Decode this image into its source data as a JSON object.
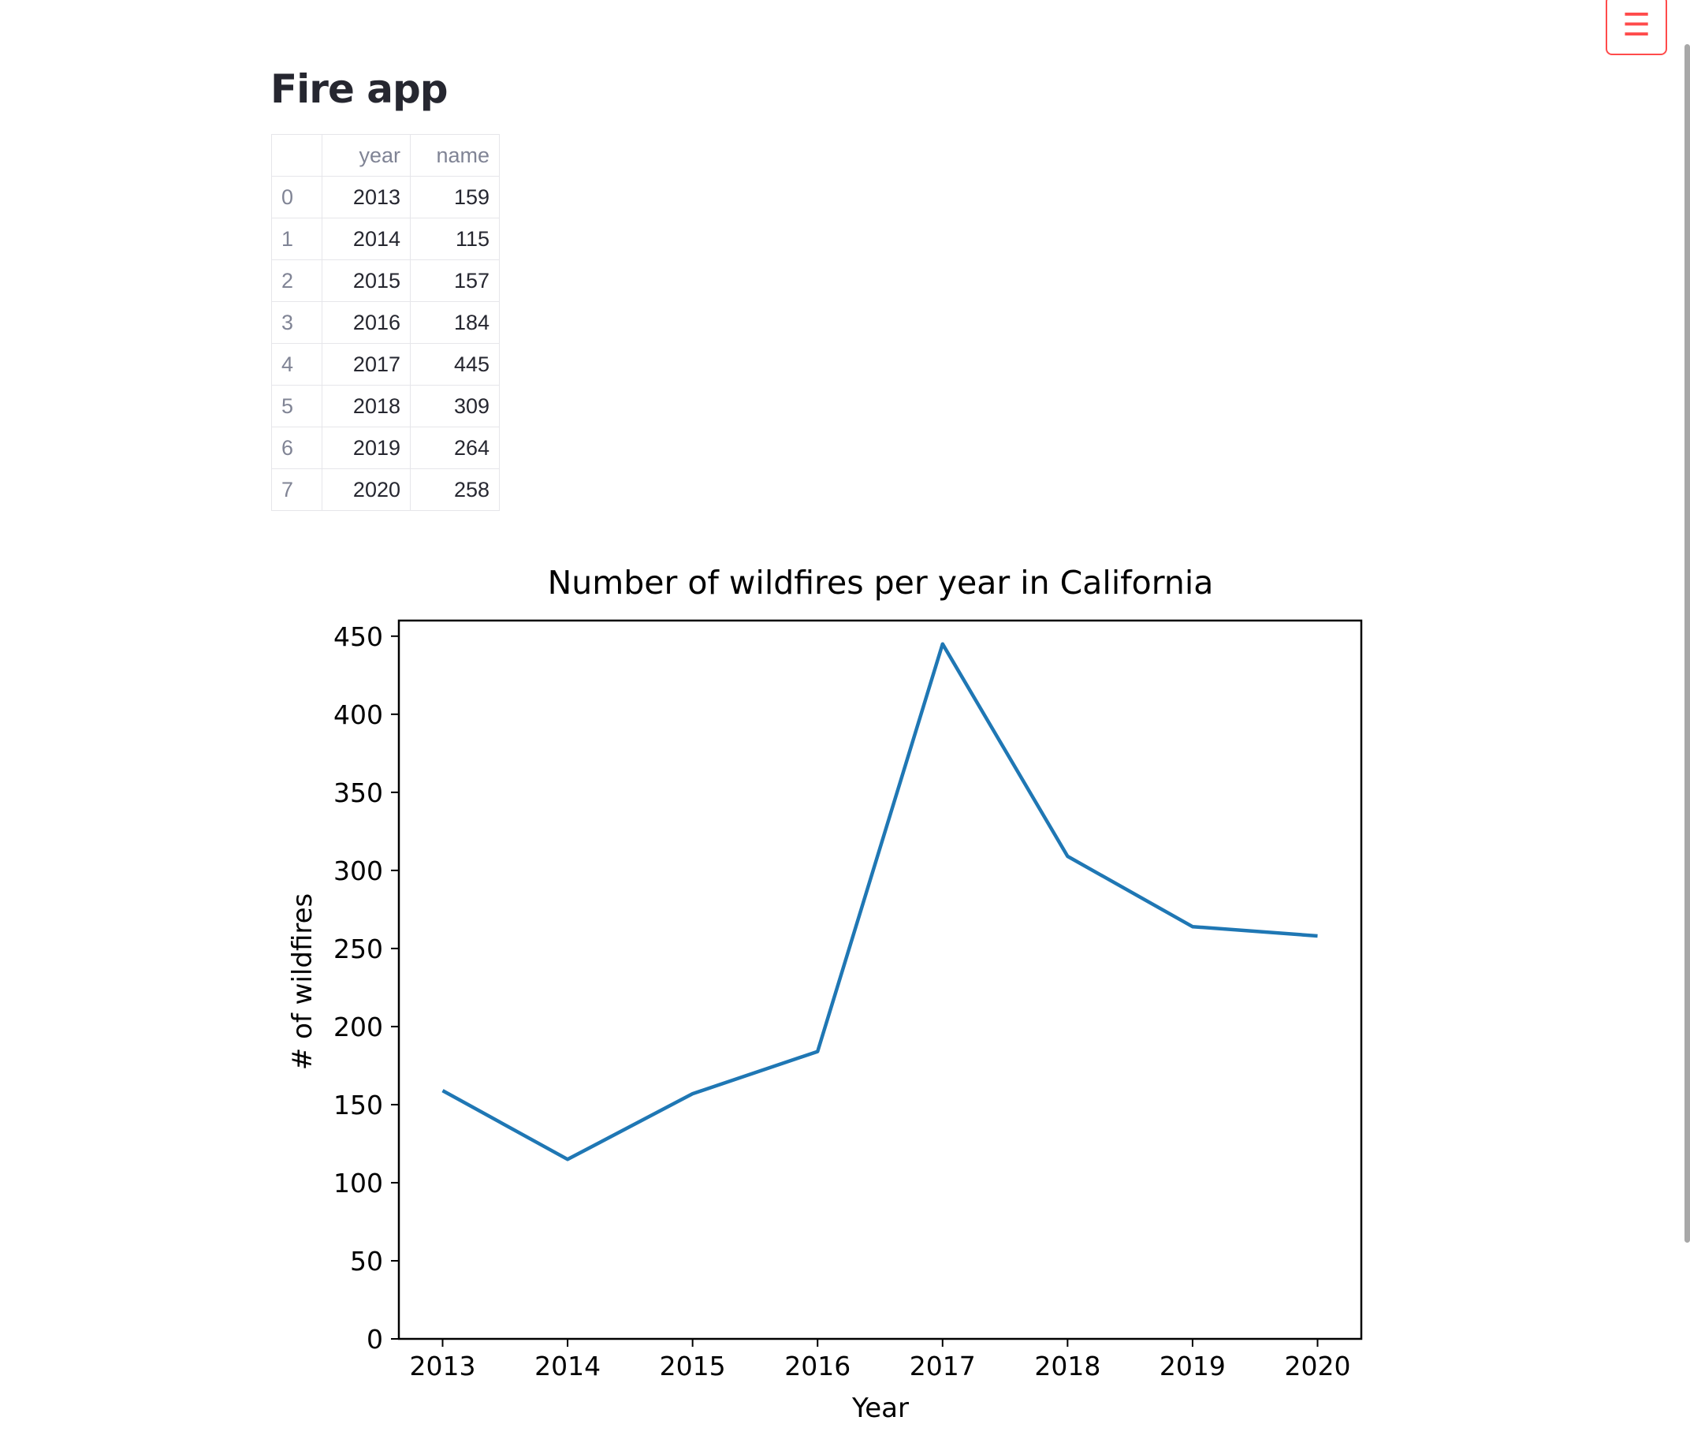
{
  "app": {
    "title": "Fire app",
    "menu_icon": "hamburger-menu-icon",
    "menu_glyph": "☰",
    "accent_color": "#ff4b4b"
  },
  "table": {
    "columns": [
      "",
      "year",
      "name"
    ],
    "rows": [
      {
        "index": "0",
        "year": "2013",
        "name": "159"
      },
      {
        "index": "1",
        "year": "2014",
        "name": "115"
      },
      {
        "index": "2",
        "year": "2015",
        "name": "157"
      },
      {
        "index": "3",
        "year": "2016",
        "name": "184"
      },
      {
        "index": "4",
        "year": "2017",
        "name": "445"
      },
      {
        "index": "5",
        "year": "2018",
        "name": "309"
      },
      {
        "index": "6",
        "year": "2019",
        "name": "264"
      },
      {
        "index": "7",
        "year": "2020",
        "name": "258"
      }
    ]
  },
  "chart_data": {
    "type": "line",
    "title": "Number of wildfires per year in California",
    "xlabel": "Year",
    "ylabel": "# of wildfires",
    "x": [
      2013,
      2014,
      2015,
      2016,
      2017,
      2018,
      2019,
      2020
    ],
    "series": [
      {
        "values": [
          159,
          115,
          157,
          184,
          445,
          309,
          264,
          258
        ],
        "color": "#1f77b4"
      }
    ],
    "xticks": [
      "2013",
      "2014",
      "2015",
      "2016",
      "2017",
      "2018",
      "2019",
      "2020"
    ],
    "yticks": [
      "0",
      "50",
      "100",
      "150",
      "200",
      "250",
      "300",
      "350",
      "400",
      "450"
    ],
    "ylim": [
      0,
      460
    ],
    "xlim": [
      2012.65,
      2020.35
    ],
    "grid": false,
    "legend": "none"
  }
}
